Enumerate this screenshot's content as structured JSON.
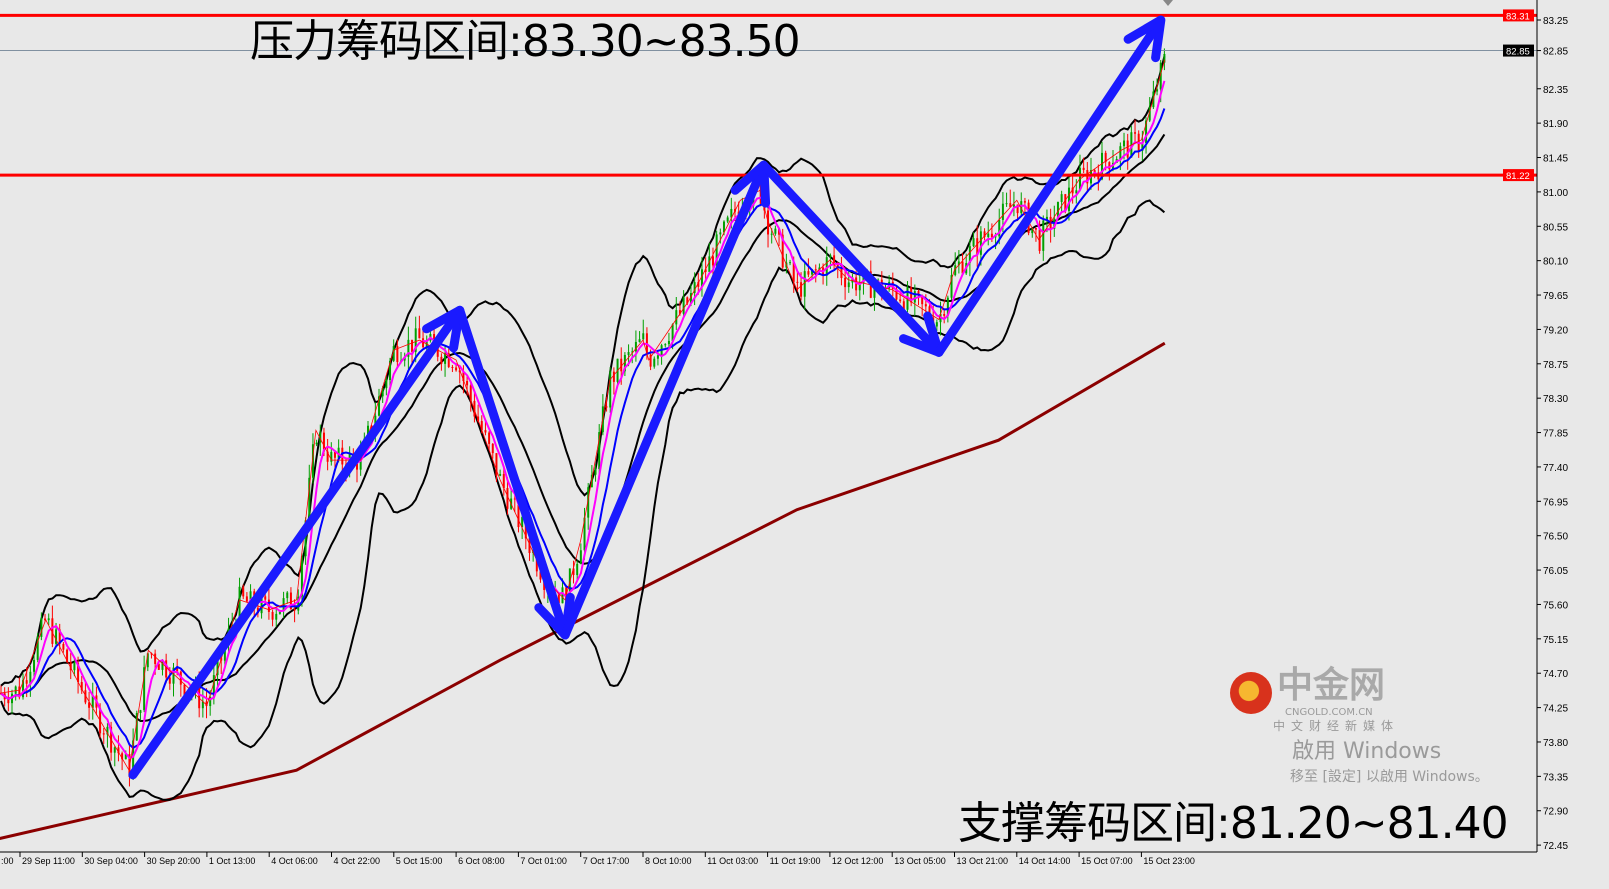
{
  "chart_data": {
    "type": "candlestick",
    "title": "",
    "y_tick_labels": [
      "83.25",
      "82.85",
      "82.35",
      "81.90",
      "81.45",
      "81.00",
      "80.55",
      "80.10",
      "79.65",
      "79.20",
      "78.75",
      "78.30",
      "77.85",
      "77.40",
      "76.95",
      "76.50",
      "76.05",
      "75.60",
      "75.15",
      "74.70",
      "74.25",
      "73.80",
      "73.35",
      "72.90",
      "72.45"
    ],
    "ylim": [
      72.45,
      83.31
    ],
    "x_tick_labels": [
      ":00",
      "29 Sep 11:00",
      "30 Sep 04:00",
      "30 Sep 20:00",
      "1 Oct 13:00",
      "4 Oct 06:00",
      "4 Oct 22:00",
      "5 Oct 15:00",
      "6 Oct 08:00",
      "7 Oct 01:00",
      "7 Oct 17:00",
      "8 Oct 10:00",
      "11 Oct 03:00",
      "11 Oct 19:00",
      "12 Oct 12:00",
      "13 Oct 05:00",
      "13 Oct 21:00",
      "14 Oct 14:00",
      "15 Oct 07:00",
      "15 Oct 23:00"
    ],
    "price_path": [
      [
        "28 Sep 18:00",
        74.35
      ],
      [
        "29 Sep 11:00",
        74.48
      ],
      [
        "29 Sep 18:00",
        75.4
      ],
      [
        "30 Sep 04:00",
        74.48
      ],
      [
        "30 Sep 16:00",
        73.43
      ],
      [
        "30 Sep 21:00",
        75.0
      ],
      [
        "1 Oct 13:00",
        74.28
      ],
      [
        "2 Oct 23:00",
        75.66
      ],
      [
        "4 Oct 06:00",
        75.53
      ],
      [
        "4 Oct 13:00",
        75.66
      ],
      [
        "4 Oct 18:00",
        77.88
      ],
      [
        "4 Oct 22:00",
        77.49
      ],
      [
        "5 Oct 06:00",
        77.49
      ],
      [
        "5 Oct 15:00",
        78.93
      ],
      [
        "5 Oct 22:00",
        79.06
      ],
      [
        "6 Oct 08:00",
        78.8
      ],
      [
        "6 Oct 20:00",
        77.23
      ],
      [
        "7 Oct 01:00",
        76.71
      ],
      [
        "7 Oct 08:00",
        75.92
      ],
      [
        "7 Oct 13:00",
        75.66
      ],
      [
        "7 Oct 17:00",
        76.44
      ],
      [
        "8 Oct 01:00",
        78.54
      ],
      [
        "8 Oct 10:00",
        79.06
      ],
      [
        "8 Oct 16:00",
        78.8
      ],
      [
        "10 Oct 10:00",
        79.58
      ],
      [
        "11 Oct 03:00",
        79.98
      ],
      [
        "11 Oct 12:00",
        80.89
      ],
      [
        "11 Oct 17:00",
        81.02
      ],
      [
        "11 Oct 19:00",
        80.63
      ],
      [
        "12 Oct 03:00",
        79.72
      ],
      [
        "12 Oct 12:00",
        80.11
      ],
      [
        "12 Oct 17:00",
        79.85
      ],
      [
        "13 Oct 05:00",
        79.72
      ],
      [
        "13 Oct 17:00",
        79.33
      ],
      [
        "13 Oct 21:00",
        79.98
      ],
      [
        "14 Oct 09:00",
        80.63
      ],
      [
        "14 Oct 14:00",
        80.89
      ],
      [
        "14 Oct 20:00",
        80.37
      ],
      [
        "15 Oct 07:00",
        81.16
      ],
      [
        "15 Oct 18:00",
        81.55
      ],
      [
        "15 Oct 23:00",
        81.68
      ],
      [
        "16 Oct 05:00",
        82.73
      ]
    ],
    "ma_long": [
      [
        "28 Sep 18:00",
        72.41
      ],
      [
        "4 Oct 13:00",
        73.43
      ],
      [
        "6 Oct 20:00",
        74.87
      ],
      [
        "12 Oct 03:00",
        76.84
      ],
      [
        "14 Oct 09:00",
        77.75
      ],
      [
        "16 Oct 05:00",
        79.02
      ]
    ],
    "horizontal_lines": [
      {
        "label": "83.31",
        "price": 83.31,
        "color": "#ff0000"
      },
      {
        "label": "81.22",
        "price": 81.22,
        "color": "#ff0000"
      },
      {
        "label": "82.85",
        "price": 82.85,
        "color": "#8090a0"
      }
    ],
    "trend_arrows": [
      [
        "30 Sep 17:00",
        73.37
      ],
      [
        "6 Oct 09:00",
        79.45
      ],
      [
        "7 Oct 13:00",
        75.2
      ],
      [
        "11 Oct 18:00",
        81.35
      ],
      [
        "13 Oct 17:00",
        78.9
      ],
      [
        "16 Oct 04:00",
        83.25
      ]
    ],
    "colors": {
      "up": "#00a000",
      "down": "#ff0000",
      "bands": "#000000",
      "ma_fast": "#ff00ff",
      "ma_mid": "#0000ff",
      "ma_long": "#8b0000",
      "arrow": "#1a1aff",
      "background": "#e8e8e8"
    }
  },
  "annotations": {
    "resistance": "压力筹码区间:83.30~83.50",
    "support": "支撑筹码区间:81.20~81.40"
  },
  "watermarks": {
    "windows_line1": "啟用 Windows",
    "windows_line2": "移至 [設定] 以啟用 Windows。",
    "logo_name": "中金网",
    "logo_url": "CNGOLD.COM.CN",
    "logo_sub": "中文财经新媒体"
  }
}
